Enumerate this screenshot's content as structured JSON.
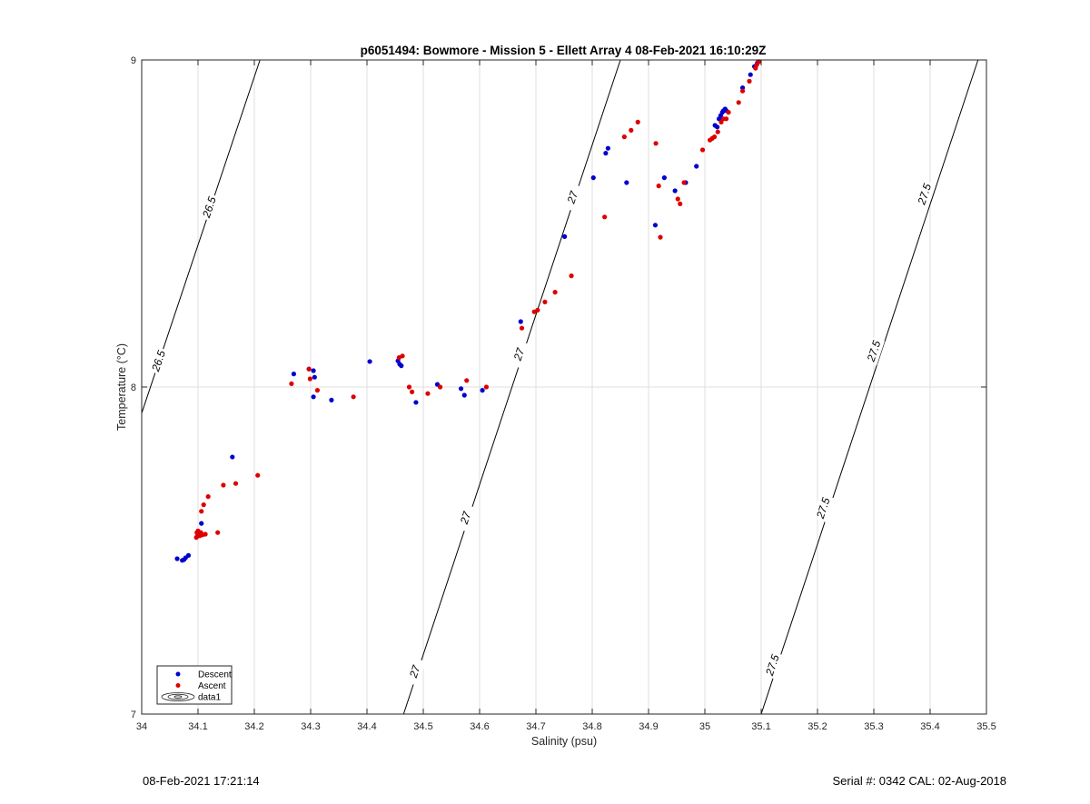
{
  "chart_data": {
    "type": "scatter",
    "title": "p6051494: Bowmore - Mission 5 - Ellett Array 4 08-Feb-2021 16:10:29Z",
    "xlabel": "Salinity (psu)",
    "ylabel": "Temperature (°C)",
    "xlim": [
      34,
      35.5
    ],
    "ylim": [
      7,
      9
    ],
    "xticks": [
      "34",
      "34.1",
      "34.2",
      "34.3",
      "34.4",
      "34.5",
      "34.6",
      "34.7",
      "34.8",
      "34.9",
      "35",
      "35.1",
      "35.2",
      "35.3",
      "35.4",
      "35.5"
    ],
    "yticks": [
      "7",
      "8",
      "9"
    ],
    "grid": true,
    "legend_position": "bottom-left",
    "legend": [
      "Descent",
      "Ascent",
      "data1"
    ],
    "series": [
      {
        "name": "Descent",
        "color": "#0000cc",
        "points": [
          [
            34.063,
            7.475
          ],
          [
            34.072,
            7.47
          ],
          [
            34.075,
            7.472
          ],
          [
            34.078,
            7.478
          ],
          [
            34.083,
            7.485
          ],
          [
            34.106,
            7.583
          ],
          [
            34.161,
            7.786
          ],
          [
            34.27,
            8.04
          ],
          [
            34.297,
            8.055
          ],
          [
            34.305,
            8.05
          ],
          [
            34.307,
            8.03
          ],
          [
            34.305,
            7.97
          ],
          [
            34.337,
            7.96
          ],
          [
            34.405,
            8.078
          ],
          [
            34.455,
            8.08
          ],
          [
            34.458,
            8.07
          ],
          [
            34.461,
            8.065
          ],
          [
            34.487,
            7.953
          ],
          [
            34.525,
            8.008
          ],
          [
            34.567,
            7.995
          ],
          [
            34.573,
            7.975
          ],
          [
            34.605,
            7.99
          ],
          [
            34.673,
            8.2
          ],
          [
            34.751,
            8.46
          ],
          [
            34.802,
            8.64
          ],
          [
            34.824,
            8.715
          ],
          [
            34.828,
            8.73
          ],
          [
            34.861,
            8.625
          ],
          [
            34.912,
            8.495
          ],
          [
            34.928,
            8.64
          ],
          [
            34.947,
            8.6
          ],
          [
            34.966,
            8.625
          ],
          [
            34.985,
            8.675
          ],
          [
            35.018,
            8.8
          ],
          [
            35.022,
            8.795
          ],
          [
            35.025,
            8.82
          ],
          [
            35.028,
            8.83
          ],
          [
            35.031,
            8.84
          ],
          [
            35.033,
            8.845
          ],
          [
            35.036,
            8.85
          ],
          [
            35.038,
            8.845
          ],
          [
            35.067,
            8.915
          ],
          [
            35.081,
            8.955
          ],
          [
            35.088,
            8.98
          ],
          [
            35.093,
            8.99
          ],
          [
            35.095,
            8.995
          ]
        ]
      },
      {
        "name": "Ascent",
        "color": "#dd0000",
        "points": [
          [
            34.097,
            7.54
          ],
          [
            34.099,
            7.545
          ],
          [
            34.1,
            7.55
          ],
          [
            34.101,
            7.548
          ],
          [
            34.102,
            7.552
          ],
          [
            34.103,
            7.545
          ],
          [
            34.104,
            7.55
          ],
          [
            34.105,
            7.555
          ],
          [
            34.1,
            7.56
          ],
          [
            34.098,
            7.555
          ],
          [
            34.108,
            7.548
          ],
          [
            34.113,
            7.55
          ],
          [
            34.106,
            7.62
          ],
          [
            34.11,
            7.64
          ],
          [
            34.118,
            7.665
          ],
          [
            34.135,
            7.555
          ],
          [
            34.145,
            7.7
          ],
          [
            34.167,
            7.705
          ],
          [
            34.206,
            7.73
          ],
          [
            34.266,
            8.01
          ],
          [
            34.297,
            8.055
          ],
          [
            34.299,
            8.025
          ],
          [
            34.312,
            7.99
          ],
          [
            34.376,
            7.97
          ],
          [
            34.457,
            8.09
          ],
          [
            34.463,
            8.095
          ],
          [
            34.475,
            8.0
          ],
          [
            34.48,
            7.985
          ],
          [
            34.508,
            7.98
          ],
          [
            34.53,
            8.0
          ],
          [
            34.577,
            8.02
          ],
          [
            34.612,
            8.0
          ],
          [
            34.675,
            8.18
          ],
          [
            34.697,
            8.23
          ],
          [
            34.703,
            8.235
          ],
          [
            34.716,
            8.26
          ],
          [
            34.734,
            8.29
          ],
          [
            34.763,
            8.34
          ],
          [
            34.822,
            8.52
          ],
          [
            34.857,
            8.765
          ],
          [
            34.869,
            8.785
          ],
          [
            34.881,
            8.81
          ],
          [
            34.913,
            8.745
          ],
          [
            34.918,
            8.615
          ],
          [
            34.921,
            8.458
          ],
          [
            34.952,
            8.575
          ],
          [
            34.956,
            8.56
          ],
          [
            34.963,
            8.625
          ],
          [
            34.996,
            8.725
          ],
          [
            35.009,
            8.755
          ],
          [
            35.013,
            8.76
          ],
          [
            35.017,
            8.765
          ],
          [
            35.023,
            8.78
          ],
          [
            35.029,
            8.81
          ],
          [
            35.033,
            8.82
          ],
          [
            35.038,
            8.82
          ],
          [
            35.042,
            8.84
          ],
          [
            35.06,
            8.87
          ],
          [
            35.067,
            8.905
          ],
          [
            35.079,
            8.935
          ],
          [
            35.09,
            8.975
          ],
          [
            35.092,
            8.985
          ],
          [
            35.096,
            8.995
          ]
        ]
      }
    ],
    "contours": [
      {
        "level": "26.5",
        "line": [
          [
            34.0,
            7.92
          ],
          [
            34.21,
            9.0
          ]
        ],
        "labels": [
          {
            "text": "26.5",
            "s": 34.03,
            "t": 8.08
          },
          {
            "text": "26.5",
            "s": 34.12,
            "t": 8.55
          }
        ]
      },
      {
        "level": "27",
        "line": [
          [
            34.465,
            7.0
          ],
          [
            34.85,
            9.0
          ]
        ],
        "labels": [
          {
            "text": "27",
            "s": 34.485,
            "t": 7.13
          },
          {
            "text": "27",
            "s": 34.575,
            "t": 7.6
          },
          {
            "text": "27",
            "s": 34.67,
            "t": 8.1
          },
          {
            "text": "27",
            "s": 34.765,
            "t": 8.58
          }
        ]
      },
      {
        "level": "27.5",
        "line": [
          [
            35.1,
            7.0
          ],
          [
            35.485,
            9.0
          ]
        ],
        "labels": [
          {
            "text": "27.5",
            "s": 35.12,
            "t": 7.15
          },
          {
            "text": "27.5",
            "s": 35.21,
            "t": 7.63
          },
          {
            "text": "27.5",
            "s": 35.3,
            "t": 8.11
          },
          {
            "text": "27.5",
            "s": 35.39,
            "t": 8.59
          }
        ]
      }
    ]
  },
  "footer": {
    "left": "08-Feb-2021 17:21:14",
    "right": "Serial #: 0342  CAL: 02-Aug-2018"
  }
}
